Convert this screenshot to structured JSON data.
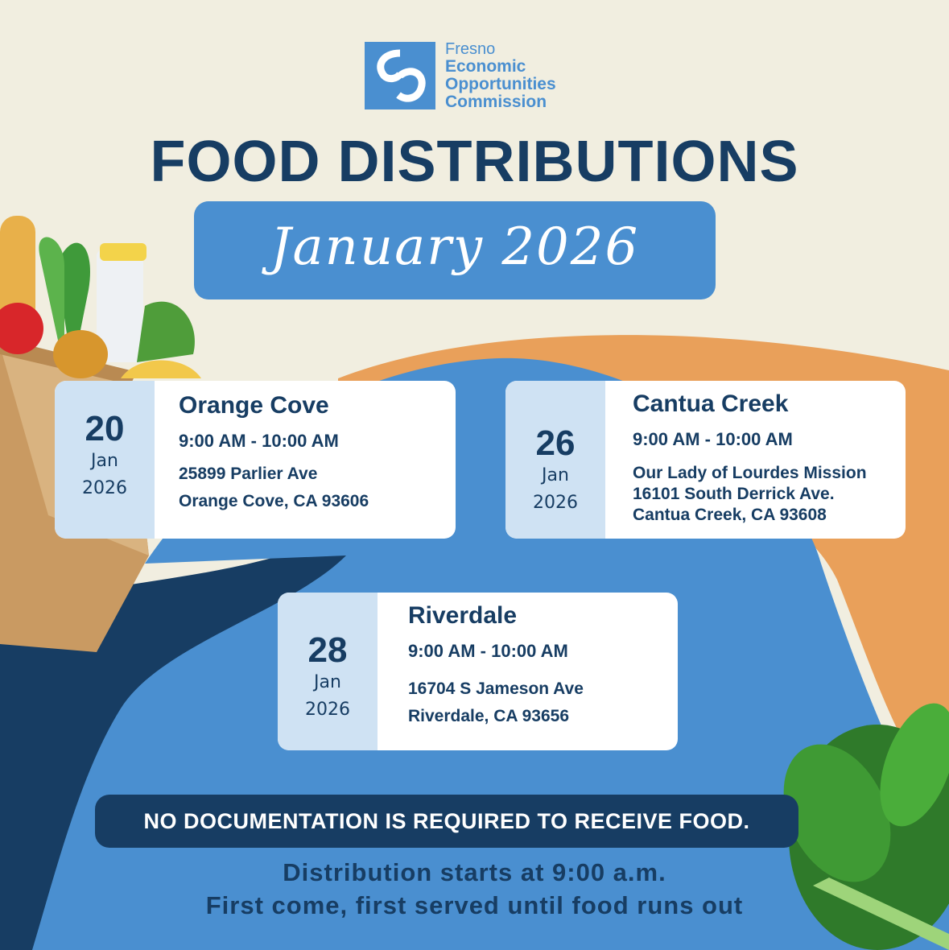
{
  "org": {
    "line1": "Fresno",
    "line2": "Economic",
    "line3": "Opportunities",
    "line4": "Commission",
    "logo_icon": "eoc-logo-icon"
  },
  "title": "FOOD DISTRIBUTIONS",
  "month": "January 2026",
  "events": [
    {
      "day": "20",
      "month": "Jan",
      "year": "2026",
      "location": "Orange Cove",
      "time": "9:00 AM - 10:00 AM",
      "address_lines": [
        "25899 Parlier Ave",
        "Orange Cove, CA 93606"
      ]
    },
    {
      "day": "26",
      "month": "Jan",
      "year": "2026",
      "location": "Cantua Creek",
      "time": "9:00 AM - 10:00 AM",
      "address_lines": [
        "Our Lady of Lourdes Mission",
        "16101 South Derrick Ave.",
        "Cantua Creek, CA 93608"
      ]
    },
    {
      "day": "28",
      "month": "Jan",
      "year": "2026",
      "location": "Riverdale",
      "time": "9:00 AM - 10:00 AM",
      "address_lines": [
        "16704 S Jameson Ave",
        "Riverdale, CA 93656"
      ]
    }
  ],
  "notice": "NO DOCUMENTATION IS REQUIRED TO RECEIVE FOOD.",
  "footer": {
    "line1": "Distribution starts at 9:00 a.m.",
    "line2": "First come, first served until food runs out"
  },
  "colors": {
    "background": "#f1eee0",
    "navy": "#173d63",
    "blue": "#4a8fd0",
    "light_blue": "#cfe2f3",
    "orange": "#e9a05a"
  }
}
